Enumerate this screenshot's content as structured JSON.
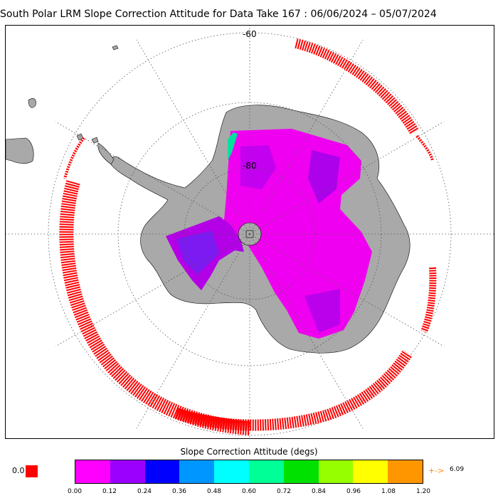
{
  "title": "South Polar LRM Slope Correction Attitude for Data Take 167 : 06/06/2024 – 05/07/2024",
  "map": {
    "lat_labels": [
      "-60",
      "-80"
    ],
    "colors": {
      "land": "#a9a9a9",
      "track": "#ff0000",
      "gridline": "#555555",
      "coastline": "#000000"
    }
  },
  "colorbar": {
    "title": "Slope Correction Attitude (degs)",
    "colors": [
      "#ff00ff",
      "#9b00ff",
      "#0000ff",
      "#0096ff",
      "#00ffff",
      "#00ff96",
      "#00e100",
      "#96ff00",
      "#ffff00",
      "#ff9600"
    ],
    "ticks": [
      "0.00",
      "0.12",
      "0.24",
      "0.36",
      "0.48",
      "0.60",
      "0.72",
      "0.84",
      "0.96",
      "1.08",
      "1.20"
    ],
    "below_label": "0.0",
    "below_color": "#ff0000",
    "over_arrow": "+->",
    "over_label": "6.09"
  }
}
